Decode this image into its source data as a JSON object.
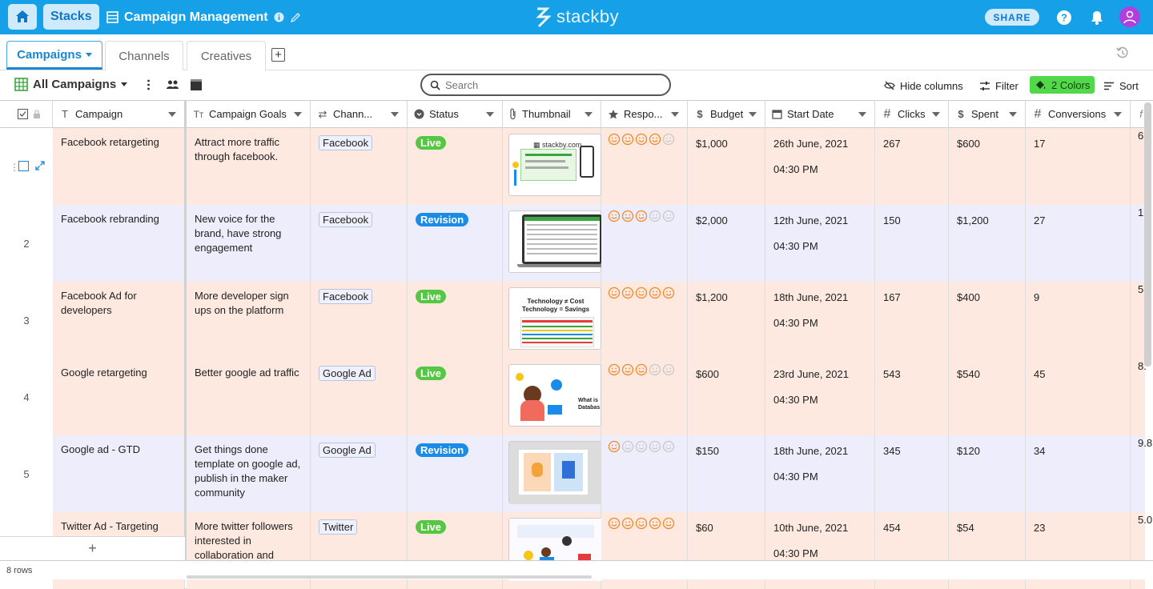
{
  "app": {
    "stacks_label": "Stacks",
    "stack_title": "Campaign Management",
    "logo_text": "stackby",
    "share_label": "SHARE"
  },
  "tabs": [
    {
      "label": "Campaigns",
      "active": true
    },
    {
      "label": "Channels",
      "active": false
    },
    {
      "label": "Creatives",
      "active": false
    }
  ],
  "toolbar": {
    "view_label": "All Campaigns",
    "search_placeholder": "Search",
    "hide_columns": "Hide columns",
    "filter": "Filter",
    "colors": "2 Colors",
    "sort": "Sort"
  },
  "columns": {
    "campaign": "Campaign",
    "goals": "Campaign Goals",
    "channel": "Chann...",
    "status": "Status",
    "thumbnail": "Thumbnail",
    "response": "Respo...",
    "budget": "Budget",
    "start_date": "Start Date",
    "clicks": "Clicks",
    "spent": "Spent",
    "conversions": "Conversions"
  },
  "rows": [
    {
      "num": "",
      "campaign": "Facebook retargeting",
      "goals": "Attract more traffic through facebook.",
      "channel": "Facebook",
      "status": "Live",
      "rating": 4,
      "budget": "$1,000",
      "date": "26th June, 2021",
      "time": "04:30 PM",
      "clicks": "267",
      "spent": "$600",
      "conversions": "17",
      "partial": "6.",
      "bg": "#fde9e0"
    },
    {
      "num": "2",
      "campaign": "Facebook rebranding",
      "goals": "New voice for the brand, have strong engagement",
      "channel": "Facebook",
      "status": "Revision",
      "rating": 3,
      "budget": "$2,000",
      "date": "12th June, 2021",
      "time": "04:30 PM",
      "clicks": "150",
      "spent": "$1,200",
      "conversions": "27",
      "partial": "1",
      "bg": "#eeedfc"
    },
    {
      "num": "3",
      "campaign": "Facebook Ad for developers",
      "goals": "More developer sign ups on the platform",
      "channel": "Facebook",
      "status": "Live",
      "rating": 5,
      "budget": "$1,200",
      "date": "18th June, 2021",
      "time": "04:30 PM",
      "clicks": "167",
      "spent": "$400",
      "conversions": "9",
      "partial": "5.",
      "bg": "#fde9e0"
    },
    {
      "num": "4",
      "campaign": "Google retargeting",
      "goals": "Better google ad traffic",
      "channel": "Google Ad",
      "status": "Live",
      "rating": 3,
      "budget": "$600",
      "date": "23rd June, 2021",
      "time": "04:30 PM",
      "clicks": "543",
      "spent": "$540",
      "conversions": "45",
      "partial": "8.",
      "bg": "#fde9e0"
    },
    {
      "num": "5",
      "campaign": "Google ad - GTD",
      "goals": "Get things done template on google ad, publish in the maker community",
      "channel": "Google Ad",
      "status": "Revision",
      "rating": 1,
      "budget": "$150",
      "date": "18th June, 2021",
      "time": "04:30 PM",
      "clicks": "345",
      "spent": "$120",
      "conversions": "34",
      "partial": "9.8",
      "bg": "#eeedfc"
    },
    {
      "num": "",
      "campaign": "Twitter Ad - Targeting",
      "goals": "More twitter followers interested in collaboration and",
      "channel": "Twitter",
      "status": "Live",
      "rating": 5,
      "budget": "$60",
      "date": "10th June, 2021",
      "time": "04:30 PM",
      "clicks": "454",
      "spent": "$54",
      "conversions": "23",
      "partial": "5.0",
      "bg": "#fde9e0"
    }
  ],
  "footer": {
    "row_count": "8 rows"
  },
  "colors": {
    "live": "#56c742",
    "revision": "#1b8be8",
    "accent": "#16a0e8"
  }
}
